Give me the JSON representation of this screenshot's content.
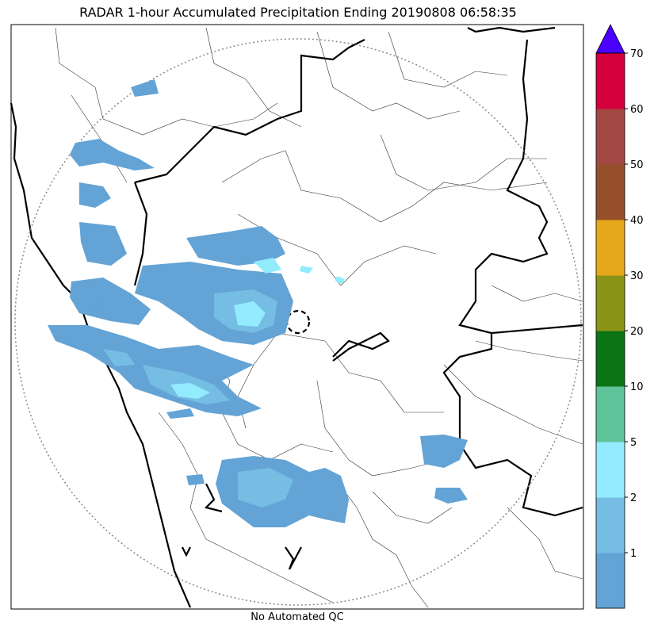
{
  "title": "RADAR 1-hour Accumulated Precipitation Ending 20190808 06:58:35",
  "footer": "No Automated QC",
  "colorbar": {
    "bins": [
      {
        "color": "#63a3d5"
      },
      {
        "color": "#75bde3"
      },
      {
        "color": "#93ecfe"
      },
      {
        "color": "#5fc39a"
      },
      {
        "color": "#0d7416"
      },
      {
        "color": "#8a9316"
      },
      {
        "color": "#e6a81b"
      },
      {
        "color": "#964f2b"
      },
      {
        "color": "#a24842"
      },
      {
        "color": "#d3003d"
      }
    ],
    "extend_color": "#4a00ff",
    "labels": [
      "1",
      "2",
      "5",
      "10",
      "20",
      "30",
      "40",
      "50",
      "60",
      "70"
    ]
  },
  "map": {
    "background": "#ffffff",
    "range_ring_color": "#888888",
    "echo_colors": {
      "light": "#63a3d5",
      "medium": "#75bde3",
      "heavy": "#93ecfe"
    }
  }
}
